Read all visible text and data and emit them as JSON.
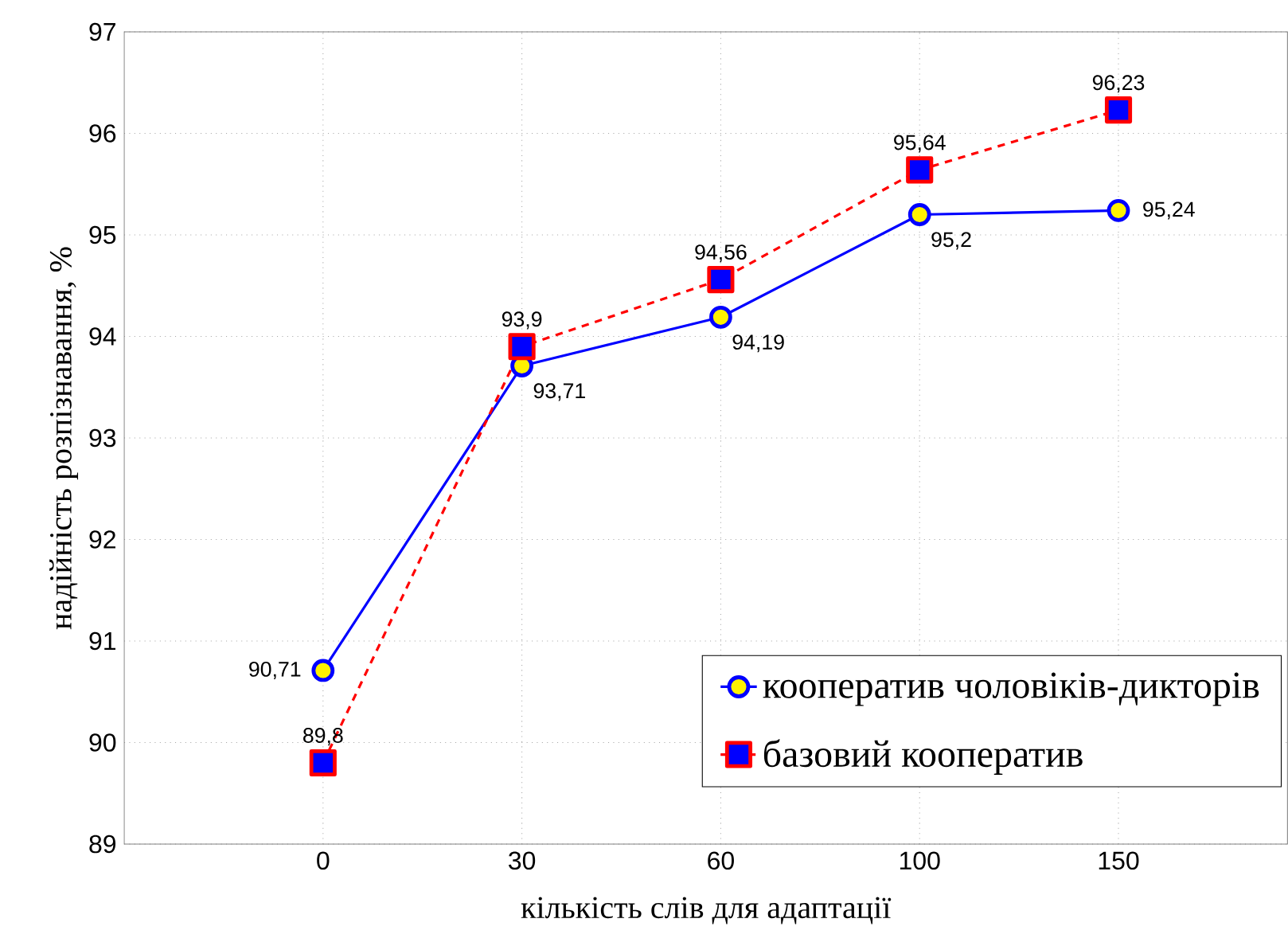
{
  "chart_data": {
    "type": "line",
    "xlabel": "кількість слів для адаптації",
    "ylabel": "надійність розпізнавання, %",
    "categories": [
      "0",
      "30",
      "60",
      "100",
      "150"
    ],
    "series": [
      {
        "name": "кооператив чоловіків-дикторів",
        "color": "#0000ff",
        "marker": "circle",
        "line_style": "solid",
        "values": [
          90.71,
          93.71,
          94.19,
          95.2,
          95.24
        ],
        "value_labels": [
          "90,71",
          "93,71",
          "94,19",
          "95,2",
          "95,24"
        ]
      },
      {
        "name": "базовий кооператив",
        "color": "#ff0000",
        "marker": "square",
        "line_style": "dashed",
        "values": [
          89.8,
          93.9,
          94.56,
          95.64,
          96.23
        ],
        "value_labels": [
          "89,8",
          "93,9",
          "94,56",
          "95,64",
          "96,23"
        ]
      }
    ],
    "ylim": [
      89,
      97
    ],
    "yticks": [
      89,
      90,
      91,
      92,
      93,
      94,
      95,
      96,
      97
    ],
    "grid": true,
    "legend": "bottom right"
  }
}
